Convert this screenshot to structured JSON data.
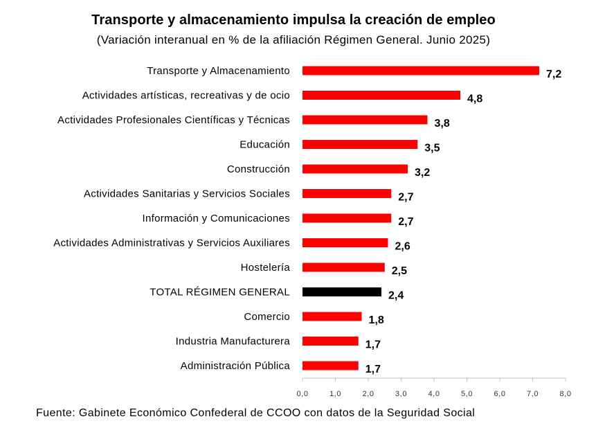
{
  "chart_data": {
    "type": "bar",
    "orientation": "horizontal",
    "title": "Transporte y almacenamiento impulsa la creación de empleo",
    "subtitle": "(Variación interanual en % de la afiliación Régimen General. Junio 2025)",
    "source": "Fuente: Gabinete Económico Confederal de CCOO con datos de la Seguridad Social",
    "xlabel": "",
    "ylabel": "",
    "xlim": [
      0,
      8
    ],
    "x_ticks": [
      "0,0",
      "1,0",
      "2,0",
      "3,0",
      "4,0",
      "5,0",
      "6,0",
      "7,0",
      "8,0"
    ],
    "grid": false,
    "colors": {
      "default": "#ff0000",
      "highlight": "#000000"
    },
    "categories": [
      "Transporte y Almacenamiento",
      "Actividades artísticas, recreativas y de ocio",
      "Actividades Profesionales Científicas y Técnicas",
      "Educación",
      "Construcción",
      "Actividades Sanitarias y Servicios Sociales",
      "Información y Comunicaciones",
      "Actividades Administrativas y Servicios Auxiliares",
      "Hostelería",
      "TOTAL RÉGIMEN GENERAL",
      "Comercio",
      "Industria Manufacturera",
      "Administración Pública"
    ],
    "values": [
      7.2,
      4.8,
      3.8,
      3.5,
      3.2,
      2.7,
      2.7,
      2.6,
      2.5,
      2.4,
      1.8,
      1.7,
      1.7
    ],
    "value_labels": [
      "7,2",
      "4,8",
      "3,8",
      "3,5",
      "3,2",
      "2,7",
      "2,7",
      "2,6",
      "2,5",
      "2,4",
      "1,8",
      "1,7",
      "1,7"
    ],
    "highlight": "TOTAL RÉGIMEN GENERAL"
  }
}
